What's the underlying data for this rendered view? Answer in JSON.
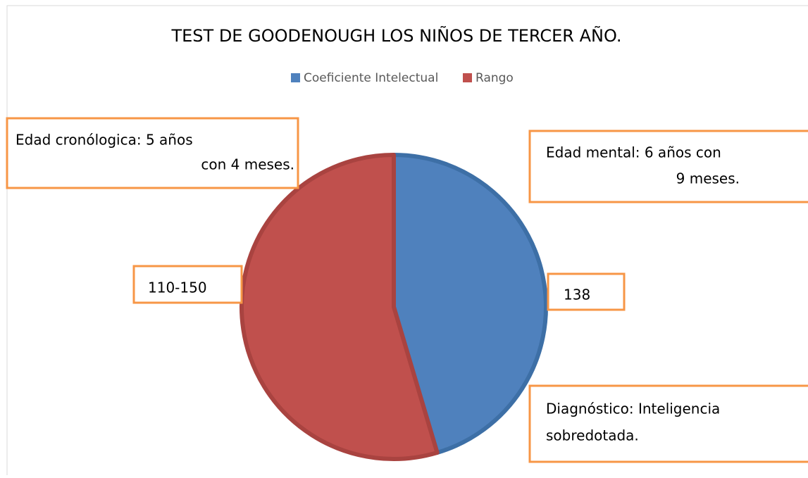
{
  "chart_data": {
    "type": "pie",
    "title": "TEST DE GOODENOUGH LOS NIÑOS DE TERCER AÑO.",
    "categories": [
      "Coeficiente Intelectual",
      "Rango"
    ],
    "values": [
      138,
      166
    ],
    "colors": [
      "#4f81bd",
      "#c0504d"
    ],
    "legend": "top",
    "annotations": [
      [
        "Edad cronólogica: 5 años",
        "con 4 meses."
      ],
      [
        "Edad mental: 6 años con",
        "9 meses."
      ],
      [
        "110-150"
      ],
      [
        "Diagnóstico: Inteligencia",
        "sobredotada."
      ]
    ]
  }
}
